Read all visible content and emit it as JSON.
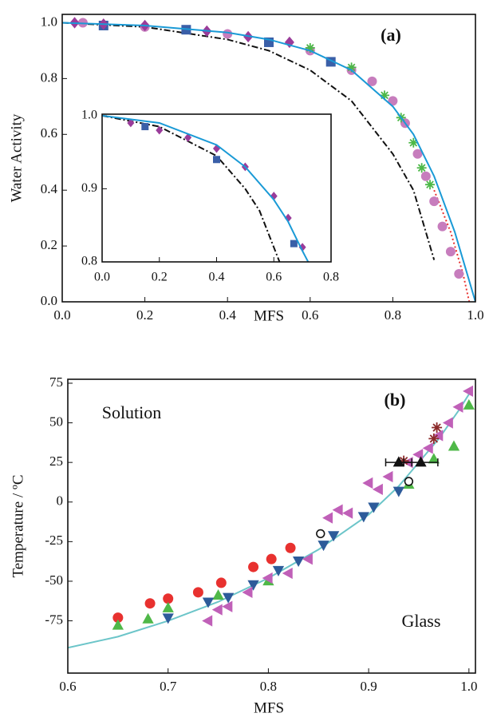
{
  "chart_data": [
    {
      "type": "scatter",
      "xlabel": "MFS",
      "ylabel": "Water Activity",
      "annotations": [
        "(a)"
      ],
      "xlim": [
        0,
        1
      ],
      "ylim": [
        0,
        1.03
      ],
      "xticks": [
        {
          "value": 0,
          "label": "0.0"
        },
        0.2,
        0.4,
        0.6,
        0.8,
        {
          "value": 1,
          "label": "1.0"
        }
      ],
      "yticks": [
        {
          "value": 0,
          "label": "0.0"
        },
        0.2,
        0.4,
        0.6,
        0.8,
        {
          "value": 1,
          "label": "1.0"
        }
      ],
      "series": [
        {
          "marker": "none",
          "dash": "dashdot",
          "color": "#111111",
          "x": [
            0,
            0.2,
            0.4,
            0.5,
            0.6,
            0.7,
            0.8,
            0.85,
            0.9
          ],
          "values": [
            1,
            0.985,
            0.94,
            0.9,
            0.83,
            0.72,
            0.53,
            0.4,
            0.15
          ]
        },
        {
          "marker": "none",
          "dash": "dotted",
          "color": "#e8312f",
          "x": [
            0.9,
            0.94,
            0.97,
            0.985
          ],
          "values": [
            0.4,
            0.25,
            0.1,
            0
          ]
        },
        {
          "marker": "circle",
          "color": "#c77dbd",
          "x": [
            0.05,
            0.2,
            0.4,
            0.6,
            0.7,
            0.75,
            0.8,
            0.83,
            0.86,
            0.88,
            0.9,
            0.92,
            0.94,
            0.96
          ],
          "values": [
            1,
            0.985,
            0.96,
            0.9,
            0.83,
            0.79,
            0.72,
            0.64,
            0.53,
            0.45,
            0.36,
            0.27,
            0.18,
            0.1
          ]
        },
        {
          "marker": "asterisk",
          "color": "#4db848",
          "x": [
            0.6,
            0.7,
            0.78,
            0.82,
            0.85,
            0.87,
            0.89
          ],
          "values": [
            0.91,
            0.84,
            0.74,
            0.66,
            0.57,
            0.48,
            0.42
          ]
        },
        {
          "marker": "square",
          "color": "#3a5fa8",
          "x": [
            0.1,
            0.3,
            0.5,
            0.65
          ],
          "values": [
            0.99,
            0.975,
            0.93,
            0.86
          ]
        },
        {
          "marker": "diamond",
          "color": "#9a3c9a",
          "x": [
            0.03,
            0.1,
            0.2,
            0.35,
            0.45,
            0.55
          ],
          "values": [
            1,
            0.995,
            0.99,
            0.97,
            0.95,
            0.93
          ]
        },
        {
          "marker": "none",
          "dash": "solid",
          "color": "#1a9ad6",
          "x": [
            0,
            0.2,
            0.4,
            0.5,
            0.6,
            0.7,
            0.8,
            0.85,
            0.9,
            0.95,
            0.98,
            1
          ],
          "values": [
            1,
            0.99,
            0.965,
            0.94,
            0.9,
            0.83,
            0.7,
            0.6,
            0.45,
            0.25,
            0.1,
            0
          ]
        }
      ]
    },
    {
      "type": "scatter",
      "xlim": [
        0,
        0.8
      ],
      "ylim": [
        0.8,
        1.002
      ],
      "xticks": [
        {
          "value": 0,
          "label": "0.0"
        },
        0.2,
        0.4,
        0.6,
        0.8
      ],
      "yticks": [
        0.8,
        0.9,
        {
          "value": 1,
          "label": "1.0"
        }
      ],
      "series": [
        {
          "marker": "none",
          "dash": "dashdot",
          "color": "#111111",
          "x": [
            0,
            0.2,
            0.4,
            0.5,
            0.55,
            0.6,
            0.62
          ],
          "values": [
            1,
            0.985,
            0.945,
            0.9,
            0.87,
            0.82,
            0.8
          ]
        },
        {
          "marker": "diamond",
          "color": "#9a3c9a",
          "x": [
            0.1,
            0.2,
            0.3,
            0.4,
            0.5,
            0.6,
            0.65,
            0.7
          ],
          "values": [
            0.99,
            0.98,
            0.97,
            0.955,
            0.93,
            0.89,
            0.86,
            0.82
          ]
        },
        {
          "marker": "square",
          "color": "#3a5fa8",
          "x": [
            0.15,
            0.4,
            0.67
          ],
          "values": [
            0.985,
            0.94,
            0.825
          ]
        },
        {
          "marker": "none",
          "dash": "solid",
          "color": "#1a9ad6",
          "x": [
            0,
            0.2,
            0.4,
            0.5,
            0.6,
            0.65,
            0.7,
            0.72
          ],
          "values": [
            1,
            0.99,
            0.96,
            0.93,
            0.885,
            0.855,
            0.815,
            0.8
          ]
        }
      ]
    },
    {
      "type": "scatter",
      "xlabel": "MFS",
      "ylabel": "Temperature / ºC",
      "annotations": [
        "(b)",
        "Solution",
        "Glass"
      ],
      "xlim": [
        0.6,
        1.0065
      ],
      "ylim": [
        -108,
        77.5
      ],
      "xticks": [
        0.6,
        0.7,
        0.8,
        0.9,
        {
          "value": 1,
          "label": "1.0"
        }
      ],
      "yticks": [
        -75,
        -50,
        -25,
        0,
        25,
        50,
        75
      ],
      "series": [
        {
          "marker": "none",
          "dash": "solid",
          "color": "#6cc5c9",
          "x": [
            0.6,
            0.65,
            0.7,
            0.75,
            0.8,
            0.85,
            0.9,
            0.93,
            0.95,
            0.97,
            0.99,
            1
          ],
          "values": [
            -92,
            -85,
            -75,
            -63,
            -48,
            -30,
            -8,
            10,
            25,
            40,
            58,
            68
          ]
        },
        {
          "marker": "circle",
          "color": "#e8312f",
          "x": [
            0.65,
            0.682,
            0.7,
            0.73,
            0.753,
            0.785,
            0.803,
            0.822
          ],
          "values": [
            -73,
            -64,
            -61,
            -57,
            -51,
            -41,
            -36,
            -29
          ]
        },
        {
          "marker": "triangle-up",
          "color": "#4fb848",
          "x": [
            0.65,
            0.68,
            0.7,
            0.75,
            0.8,
            0.94,
            0.965,
            0.985,
            1
          ],
          "values": [
            -78,
            -74,
            -67,
            -59,
            -50,
            11,
            27,
            35,
            61
          ]
        },
        {
          "marker": "triangle-down",
          "color": "#2d5b9a",
          "x": [
            0.7,
            0.74,
            0.76,
            0.785,
            0.81,
            0.83,
            0.855,
            0.865,
            0.895,
            0.905,
            0.93
          ],
          "values": [
            -73,
            -63,
            -60,
            -52,
            -43,
            -37,
            -27,
            -21,
            -9,
            -3,
            7
          ]
        },
        {
          "marker": "triangle-left",
          "color": "#c060b8",
          "x": [
            0.74,
            0.75,
            0.76,
            0.78,
            0.8,
            0.82,
            0.84,
            0.86,
            0.87,
            0.88,
            0.9,
            0.91,
            0.92,
            0.94,
            0.95,
            0.96,
            0.97,
            0.98,
            0.99,
            1
          ],
          "values": [
            -75,
            -68,
            -66,
            -57,
            -48,
            -45,
            -36,
            -10,
            -5,
            -7,
            12,
            8,
            16,
            25,
            30,
            34,
            42,
            50,
            60,
            70
          ]
        },
        {
          "marker": "asterisk",
          "color": "#8b2a2a",
          "x": [
            0.935,
            0.965,
            0.968
          ],
          "values": [
            26,
            40,
            47
          ]
        },
        {
          "marker": "open-circle",
          "color": "#111111",
          "x": [
            0.852,
            0.94
          ],
          "values": [
            -20,
            13
          ]
        },
        {
          "marker": "triangle-up",
          "color": "#111111",
          "x": [
            0.93,
            0.952
          ],
          "values": [
            25,
            25
          ],
          "xerr": [
            0.013,
            0.017
          ]
        }
      ]
    }
  ]
}
